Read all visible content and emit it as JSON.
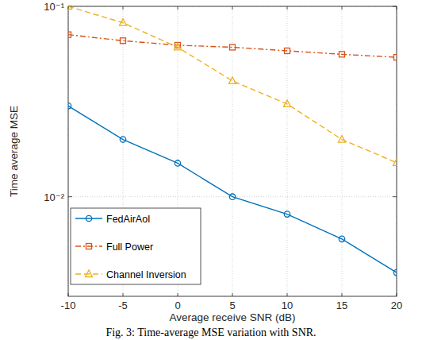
{
  "chart_data": {
    "type": "line",
    "caption": "Fig. 3: Time-average MSE variation with SNR.",
    "x_label": "Average receive SNR (dB)",
    "y_label": "Time average MSE",
    "x": [
      -10,
      -5,
      0,
      5,
      10,
      15,
      20
    ],
    "xlim": [
      -10,
      20
    ],
    "xticks": [
      -10,
      -5,
      0,
      5,
      10,
      15,
      20
    ],
    "ylim": [
      0.003,
      0.1
    ],
    "yticks": [
      {
        "value": 0.01,
        "label": "10⁻²"
      },
      {
        "value": 0.1,
        "label": "10⁻¹"
      }
    ],
    "log": "y",
    "grid": true,
    "legend": "lower left",
    "series": [
      {
        "name": "FedAirAoI",
        "color": "#0072bd",
        "marker": "circle",
        "line_style": "solid",
        "values": [
          0.03,
          0.02,
          0.015,
          0.01,
          0.0081,
          0.006,
          0.004
        ]
      },
      {
        "name": "Full Power",
        "color": "#d95319",
        "marker": "square",
        "line_style": "dashdot",
        "values": [
          0.071,
          0.066,
          0.0625,
          0.061,
          0.0584,
          0.056,
          0.054
        ]
      },
      {
        "name": "Channel Inversion",
        "color": "#edb120",
        "marker": "triangle",
        "line_style": "dashed",
        "values": [
          0.1,
          0.082,
          0.061,
          0.0406,
          0.0307,
          0.02,
          0.0151
        ]
      }
    ]
  }
}
